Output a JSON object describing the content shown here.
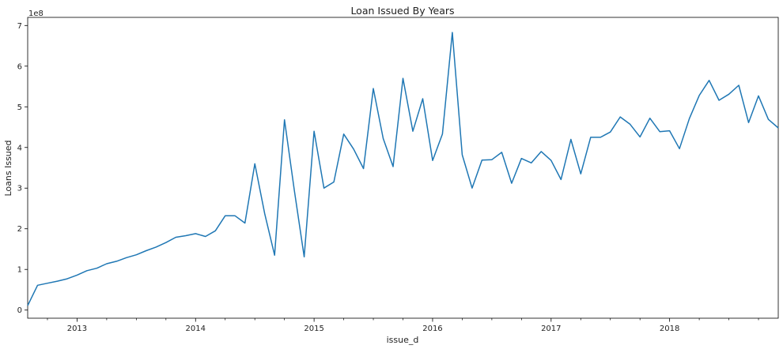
{
  "chart_data": {
    "type": "line",
    "title": "Loan Issued By Years",
    "xlabel": "issue_d",
    "ylabel": "Loans Issued",
    "y_multiplier_label": "1e8",
    "x_tick_labels": [
      "2013",
      "2014",
      "2015",
      "2016",
      "2017",
      "2018"
    ],
    "y_tick_labels": [
      "0",
      "1",
      "2",
      "3",
      "4",
      "5",
      "6",
      "7"
    ],
    "xlim": [
      "2012-08",
      "2018-12"
    ],
    "ylim": [
      -0.2,
      7.2
    ],
    "y_units": "1e8",
    "grid": false,
    "line_color": "#1f77b4",
    "series": [
      {
        "x": [
          "2012-08",
          "2012-09",
          "2012-10",
          "2012-11",
          "2012-12",
          "2013-01",
          "2013-02",
          "2013-03",
          "2013-04",
          "2013-05",
          "2013-06",
          "2013-07",
          "2013-08",
          "2013-09",
          "2013-10",
          "2013-11",
          "2013-12",
          "2014-01",
          "2014-02",
          "2014-03",
          "2014-04",
          "2014-05",
          "2014-06",
          "2014-07",
          "2014-08",
          "2014-09",
          "2014-10",
          "2014-11",
          "2014-12",
          "2015-01",
          "2015-02",
          "2015-03",
          "2015-04",
          "2015-05",
          "2015-06",
          "2015-07",
          "2015-08",
          "2015-09",
          "2015-10",
          "2015-11",
          "2015-12",
          "2016-01",
          "2016-02",
          "2016-03",
          "2016-04",
          "2016-05",
          "2016-06",
          "2016-07",
          "2016-08",
          "2016-09",
          "2016-10",
          "2016-11",
          "2016-12",
          "2017-01",
          "2017-02",
          "2017-03",
          "2017-04",
          "2017-05",
          "2017-06",
          "2017-07",
          "2017-08",
          "2017-09",
          "2017-10",
          "2017-11",
          "2017-12",
          "2018-01",
          "2018-02",
          "2018-03",
          "2018-04",
          "2018-05",
          "2018-06",
          "2018-07",
          "2018-08",
          "2018-09",
          "2018-10",
          "2018-11",
          "2018-12"
        ],
        "values": [
          0.11,
          0.61,
          0.66,
          0.71,
          0.77,
          0.86,
          0.97,
          1.03,
          1.14,
          1.2,
          1.29,
          1.36,
          1.46,
          1.55,
          1.66,
          1.79,
          1.83,
          1.88,
          1.81,
          1.95,
          2.32,
          2.32,
          2.14,
          3.6,
          2.37,
          1.35,
          4.68,
          2.95,
          1.31,
          4.4,
          3.0,
          3.15,
          4.33,
          3.96,
          3.48,
          5.45,
          4.22,
          3.53,
          5.7,
          4.4,
          5.2,
          3.68,
          4.33,
          6.83,
          3.82,
          3.0,
          3.69,
          3.7,
          3.88,
          3.12,
          3.73,
          3.62,
          3.9,
          3.68,
          3.21,
          4.2,
          3.35,
          4.25,
          4.25,
          4.38,
          4.75,
          4.57,
          4.26,
          4.72,
          4.39,
          4.41,
          3.97,
          4.71,
          5.28,
          5.65,
          5.16,
          5.31,
          5.53,
          4.61,
          5.27,
          4.69,
          4.48
        ]
      }
    ]
  }
}
